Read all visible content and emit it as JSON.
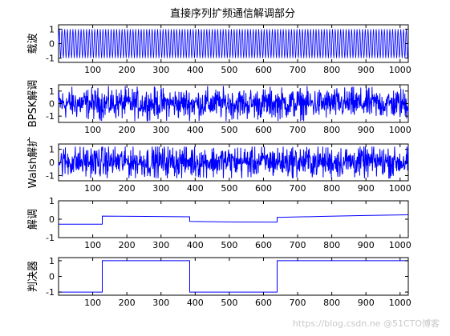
{
  "figure": {
    "title": "直接序列扩频通信解调部分",
    "watermark": "https://blog.csdn.ne @51CTO博客"
  },
  "colors": {
    "line": "#0000ff",
    "axes": "#000000",
    "background": "#ffffff",
    "watermark": "#c8c8c8"
  },
  "chart_data": [
    {
      "type": "line",
      "ylabel": "载波",
      "signal": "carrier-sine",
      "x": [
        0,
        1024
      ],
      "xlim": [
        0,
        1024
      ],
      "ylim": [
        -1.3,
        1.3
      ],
      "yticks": [
        -1,
        0,
        1
      ],
      "xticks": [
        100,
        200,
        300,
        400,
        500,
        600,
        700,
        800,
        900,
        1000
      ],
      "amplitude": 1,
      "cycles": 128
    },
    {
      "type": "line",
      "ylabel": "BPSK解调",
      "signal": "noisy",
      "xlim": [
        0,
        1024
      ],
      "ylim": [
        -1.5,
        1.5
      ],
      "yticks": [
        -1,
        0,
        1
      ],
      "xticks": [
        100,
        200,
        300,
        400,
        500,
        600,
        700,
        800,
        900,
        1000
      ],
      "mean": 0,
      "range": [
        -1.4,
        1.4
      ],
      "points": 1024
    },
    {
      "type": "line",
      "ylabel": "Walsh解扩",
      "signal": "noisy",
      "xlim": [
        0,
        1024
      ],
      "ylim": [
        -1.4,
        1.4
      ],
      "yticks": [
        -1,
        0,
        1
      ],
      "xticks": [
        100,
        200,
        300,
        400,
        500,
        600,
        700,
        800,
        900,
        1000
      ],
      "mean": 0.05,
      "range": [
        -1.2,
        1.2
      ],
      "points": 1024
    },
    {
      "type": "line",
      "ylabel": "解调",
      "signal": "step",
      "xlim": [
        0,
        1024
      ],
      "ylim": [
        -1,
        1
      ],
      "yticks": [
        -1,
        0,
        1
      ],
      "xticks": [
        100,
        200,
        300,
        400,
        500,
        600,
        700,
        800,
        900,
        1000
      ],
      "x": [
        0,
        128,
        128,
        256,
        384,
        384,
        512,
        640,
        640,
        768,
        896,
        1024
      ],
      "y": [
        -0.27,
        -0.27,
        0.17,
        0.15,
        0.13,
        -0.12,
        -0.15,
        -0.16,
        0.1,
        0.15,
        0.2,
        0.24
      ]
    },
    {
      "type": "line",
      "ylabel": "判决器",
      "signal": "step",
      "xlim": [
        0,
        1024
      ],
      "ylim": [
        -1.2,
        1.2
      ],
      "yticks": [
        -1,
        0,
        1
      ],
      "xticks": [
        100,
        200,
        300,
        400,
        500,
        600,
        700,
        800,
        900,
        1000
      ],
      "x": [
        0,
        128,
        128,
        384,
        384,
        640,
        640,
        1024
      ],
      "y": [
        -1,
        -1,
        1,
        1,
        -1,
        -1,
        1,
        1
      ]
    }
  ]
}
